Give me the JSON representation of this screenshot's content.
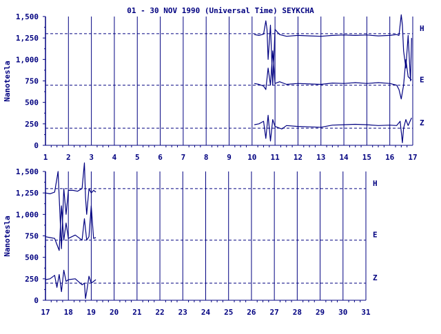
{
  "colors": {
    "ink": "#000080",
    "background": "#ffffff"
  },
  "chart_data": {
    "type": "line",
    "title": "01 - 30 NOV 1990 (Universal Time) SEYKCHA",
    "ylabel": "Nanotesla",
    "ylim": [
      0,
      1500
    ],
    "yticks": [
      0,
      250,
      500,
      750,
      1000,
      1250,
      1500
    ],
    "channel_labels": [
      "H",
      "E",
      "Z"
    ],
    "reference_levels": [
      1300,
      700,
      200
    ],
    "grid": "vertical lines at each day boundary, dashed horizontal lines at reference levels",
    "panels": [
      {
        "xlim": [
          1,
          17
        ],
        "xticks": [
          "1",
          "2",
          "3",
          "4",
          "5",
          "6",
          "7",
          "8",
          "9",
          "10",
          "11",
          "12",
          "13",
          "14",
          "15",
          "16",
          "17"
        ],
        "series": [
          {
            "channel": "H",
            "x": [
              10.1,
              10.3,
              10.5,
              10.6,
              10.65,
              10.7,
              10.8,
              10.9,
              11.0,
              11.2,
              11.5,
              12,
              12.5,
              13,
              13.5,
              14,
              14.5,
              15,
              15.5,
              16,
              16.3,
              16.4,
              16.5,
              16.55,
              16.6,
              16.7,
              16.8,
              16.9,
              16.95
            ],
            "y": [
              1290,
              1280,
              1295,
              1450,
              1350,
              1000,
              1400,
              700,
              1350,
              1290,
              1270,
              1280,
              1275,
              1270,
              1280,
              1285,
              1280,
              1285,
              1275,
              1280,
              1290,
              1280,
              1520,
              1400,
              1100,
              900,
              1280,
              750,
              1250
            ]
          },
          {
            "channel": "E",
            "x": [
              10.1,
              10.3,
              10.5,
              10.6,
              10.7,
              10.8,
              10.9,
              11.0,
              11.2,
              11.5,
              12,
              12.5,
              13,
              13.5,
              14,
              14.5,
              15,
              15.5,
              16,
              16.3,
              16.4,
              16.5,
              16.6,
              16.7,
              16.8,
              16.95
            ],
            "y": [
              720,
              710,
              690,
              650,
              900,
              700,
              1100,
              720,
              740,
              710,
              720,
              715,
              710,
              725,
              720,
              730,
              720,
              730,
              720,
              700,
              650,
              540,
              700,
              1000,
              800,
              760
            ]
          },
          {
            "channel": "Z",
            "x": [
              10.1,
              10.3,
              10.5,
              10.6,
              10.7,
              10.8,
              10.9,
              11.0,
              11.3,
              11.5,
              12,
              12.5,
              13,
              13.5,
              14,
              14.5,
              15,
              15.5,
              16,
              16.3,
              16.45,
              16.55,
              16.6,
              16.7,
              16.8,
              16.95
            ],
            "y": [
              240,
              250,
              280,
              80,
              350,
              50,
              300,
              220,
              190,
              230,
              220,
              215,
              210,
              235,
              240,
              245,
              240,
              230,
              235,
              230,
              280,
              30,
              200,
              300,
              230,
              320
            ]
          }
        ]
      },
      {
        "xlim": [
          17,
          31
        ],
        "xticks": [
          "17",
          "18",
          "19",
          "20",
          "21",
          "22",
          "23",
          "24",
          "25",
          "26",
          "27",
          "28",
          "29",
          "30",
          "31"
        ],
        "series": [
          {
            "channel": "H",
            "x": [
              17.0,
              17.2,
              17.4,
              17.55,
              17.6,
              17.7,
              17.8,
              17.9,
              18.0,
              18.2,
              18.4,
              18.6,
              18.7,
              18.75,
              18.8,
              18.9,
              19.0,
              19.1,
              19.2
            ],
            "y": [
              1250,
              1240,
              1260,
              1500,
              1200,
              600,
              1300,
              1000,
              1280,
              1280,
              1270,
              1300,
              1600,
              1200,
              1000,
              1300,
              1250,
              1280,
              1260
            ]
          },
          {
            "channel": "E",
            "x": [
              17.0,
              17.2,
              17.4,
              17.5,
              17.6,
              17.7,
              17.8,
              17.9,
              18.0,
              18.3,
              18.6,
              18.7,
              18.8,
              18.9,
              19.0,
              19.1,
              19.2
            ],
            "y": [
              740,
              730,
              720,
              650,
              580,
              1100,
              700,
              900,
              720,
              760,
              700,
              950,
              700,
              740,
              1100,
              720,
              730
            ]
          },
          {
            "channel": "Z",
            "x": [
              17.0,
              17.2,
              17.4,
              17.5,
              17.6,
              17.7,
              17.8,
              17.9,
              18.0,
              18.3,
              18.6,
              18.7,
              18.75,
              18.8,
              18.9,
              19.0,
              19.1,
              19.2
            ],
            "y": [
              240,
              250,
              290,
              150,
              300,
              100,
              350,
              220,
              240,
              250,
              180,
              200,
              20,
              100,
              280,
              200,
              220,
              240
            ]
          }
        ]
      }
    ]
  }
}
